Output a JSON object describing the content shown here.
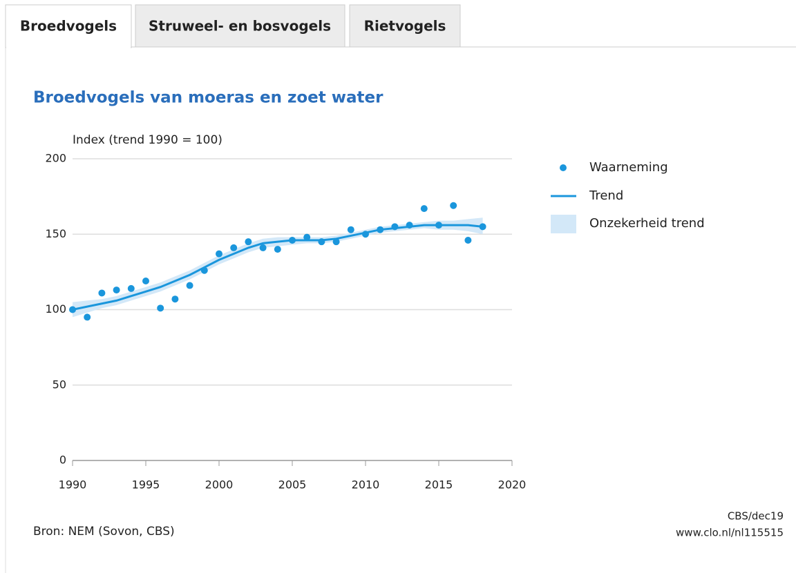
{
  "tabs": [
    "Broedvogels",
    "Struweel- en bosvogels",
    "Rietvogels"
  ],
  "chart_data": {
    "type": "scatter_trend",
    "title": "Broedvogels van moeras en zoet water",
    "y_label": "Index (trend 1990 = 100)",
    "x": [
      1990,
      1991,
      1992,
      1993,
      1994,
      1995,
      1996,
      1997,
      1998,
      1999,
      2000,
      2001,
      2002,
      2003,
      2004,
      2005,
      2006,
      2007,
      2008,
      2009,
      2010,
      2011,
      2012,
      2013,
      2014,
      2015,
      2016,
      2017,
      2018
    ],
    "series": [
      {
        "name": "Waarneming",
        "color": "#1a96dc",
        "values": [
          100,
          95,
          111,
          113,
          114,
          119,
          101,
          107,
          116,
          126,
          137,
          141,
          145,
          141,
          140,
          146,
          148,
          145,
          145,
          153,
          150,
          153,
          155,
          156,
          167,
          156,
          169,
          146,
          155
        ]
      },
      {
        "name": "Trend",
        "color": "#1a96dc",
        "values": [
          100,
          102,
          104,
          106,
          109,
          112,
          115,
          119,
          123,
          128,
          133,
          137,
          141,
          144,
          145,
          146,
          146,
          146,
          147,
          149,
          151,
          153,
          154,
          155,
          156,
          156,
          156,
          156,
          155
        ]
      },
      {
        "name": "Onzekerheid trend",
        "color": "#d3e8f8",
        "upper": [
          105,
          106,
          107,
          109,
          112,
          115,
          118,
          122,
          126,
          131,
          136,
          140,
          144,
          147,
          148,
          148,
          148,
          148,
          149,
          151,
          153,
          155,
          156,
          157,
          158,
          159,
          159,
          160,
          161
        ],
        "lower": [
          95,
          98,
          101,
          103,
          106,
          109,
          112,
          116,
          120,
          125,
          130,
          134,
          138,
          141,
          142,
          143,
          144,
          144,
          145,
          147,
          149,
          151,
          152,
          153,
          154,
          153,
          153,
          152,
          150
        ]
      }
    ],
    "xlim": [
      1990,
      2020
    ],
    "xticks": [
      1990,
      1995,
      2000,
      2005,
      2010,
      2015,
      2020
    ],
    "ylim": [
      0,
      200
    ],
    "yticks": [
      0,
      50,
      100,
      150,
      200
    ],
    "grid": true,
    "legend": "right"
  },
  "footer": {
    "source": "Bron: NEM (Sovon, CBS)",
    "credit": "CBS/dec19",
    "url": "www.clo.nl/nl115515"
  }
}
